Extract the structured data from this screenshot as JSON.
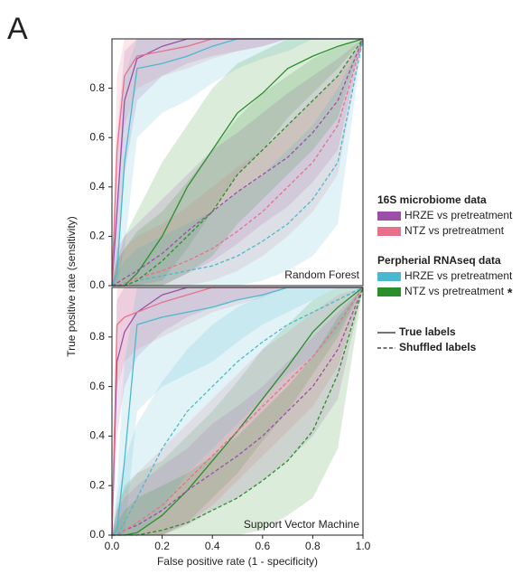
{
  "panel_label": "A",
  "y_label": "True positive rate (sensitivity)",
  "x_label": "False positive rate (1 - specificity)",
  "legend": {
    "groups": [
      {
        "title": "16S microbiome data",
        "entries": [
          {
            "name": "HRZE vs pretreatment",
            "color": "#9b4fa8"
          },
          {
            "name": "NTZ vs pretreatment",
            "color": "#e8708a"
          }
        ]
      },
      {
        "title": "Perpherial RNAseq data",
        "entries": [
          {
            "name": "HRZE vs pretreatment",
            "color": "#4bb8d0"
          },
          {
            "name": "NTZ vs pretreatment",
            "color": "#2a8f2a",
            "note": "*"
          }
        ]
      }
    ],
    "line_styles": [
      {
        "name": "True labels",
        "dash": "solid"
      },
      {
        "name": "Shuffled labels",
        "dash": "dashed"
      }
    ]
  },
  "chart_data": [
    {
      "type": "line",
      "label": "Random Forest",
      "x": [
        0,
        0.02,
        0.05,
        0.1,
        0.2,
        0.3,
        0.4,
        0.5,
        0.6,
        0.7,
        0.8,
        0.9,
        1.0
      ],
      "xlim": [
        0,
        1
      ],
      "ylim": [
        0,
        1
      ],
      "yticks": [
        {
          "value": 0,
          "label": "0.0"
        },
        {
          "value": 0.2,
          "label": "0.2"
        },
        {
          "value": 0.4,
          "label": "0.4"
        },
        {
          "value": 0.6,
          "label": "0.6"
        },
        {
          "value": 0.8,
          "label": "0.8"
        }
      ],
      "series": [
        {
          "color": "#9b4fa8",
          "dash": "solid",
          "values": [
            0,
            0.3,
            0.75,
            0.92,
            0.97,
            1,
            1,
            1,
            1,
            1,
            1,
            1,
            1
          ],
          "lower": [
            0,
            0.05,
            0.45,
            0.75,
            0.85,
            0.9,
            0.93,
            0.95,
            0.97,
            1,
            1,
            1,
            1
          ],
          "upper": [
            0,
            0.6,
            0.95,
            1,
            1,
            1,
            1,
            1,
            1,
            1,
            1,
            1,
            1
          ]
        },
        {
          "color": "#e8708a",
          "dash": "solid",
          "values": [
            0,
            0.55,
            0.85,
            0.93,
            0.95,
            0.97,
            1,
            1,
            1,
            1,
            1,
            1,
            1
          ],
          "lower": [
            0,
            0.3,
            0.65,
            0.8,
            0.85,
            0.88,
            0.92,
            0.95,
            0.97,
            1,
            1,
            1,
            1
          ],
          "upper": [
            0,
            0.85,
            1,
            1,
            1,
            1,
            1,
            1,
            1,
            1,
            1,
            1,
            1
          ]
        },
        {
          "color": "#4bb8d0",
          "dash": "solid",
          "values": [
            0,
            0.05,
            0.5,
            0.88,
            0.9,
            0.93,
            0.97,
            1,
            1,
            1,
            1,
            1,
            1
          ],
          "lower": [
            0,
            0,
            0.15,
            0.6,
            0.7,
            0.75,
            0.82,
            0.88,
            0.92,
            0.95,
            1,
            1,
            1
          ],
          "upper": [
            0,
            0.3,
            0.85,
            1,
            1,
            1,
            1,
            1,
            1,
            1,
            1,
            1,
            1
          ]
        },
        {
          "color": "#2a8f2a",
          "dash": "solid",
          "values": [
            0,
            0,
            0,
            0.05,
            0.2,
            0.4,
            0.55,
            0.7,
            0.78,
            0.88,
            0.93,
            0.97,
            1
          ],
          "lower": [
            0,
            0,
            0,
            0,
            0.02,
            0.15,
            0.3,
            0.45,
            0.55,
            0.68,
            0.78,
            0.88,
            1
          ],
          "upper": [
            0,
            0.1,
            0.2,
            0.3,
            0.5,
            0.65,
            0.8,
            0.9,
            0.95,
            1,
            1,
            1,
            1
          ]
        },
        {
          "color": "#9b4fa8",
          "dash": "dashed",
          "values": [
            0,
            0.01,
            0.03,
            0.06,
            0.13,
            0.22,
            0.3,
            0.38,
            0.45,
            0.52,
            0.62,
            0.75,
            1
          ],
          "lower": [
            0,
            0,
            0,
            0,
            0,
            0.05,
            0.1,
            0.17,
            0.25,
            0.32,
            0.42,
            0.55,
            1
          ],
          "upper": [
            0,
            0.15,
            0.2,
            0.25,
            0.35,
            0.45,
            0.55,
            0.62,
            0.7,
            0.78,
            0.85,
            0.92,
            1
          ]
        },
        {
          "color": "#e8708a",
          "dash": "dashed",
          "values": [
            0,
            0,
            0.01,
            0.03,
            0.06,
            0.1,
            0.15,
            0.22,
            0.3,
            0.4,
            0.5,
            0.65,
            1
          ],
          "lower": [
            0,
            0,
            0,
            0,
            0,
            0,
            0.02,
            0.06,
            0.12,
            0.2,
            0.3,
            0.45,
            1
          ],
          "upper": [
            0,
            0.1,
            0.15,
            0.2,
            0.25,
            0.32,
            0.4,
            0.48,
            0.55,
            0.65,
            0.75,
            0.85,
            1
          ]
        },
        {
          "color": "#4bb8d0",
          "dash": "dashed",
          "values": [
            0,
            0,
            0,
            0.02,
            0.04,
            0.06,
            0.08,
            0.12,
            0.18,
            0.25,
            0.35,
            0.5,
            1
          ],
          "lower": [
            0,
            0,
            0,
            0,
            0,
            0,
            0,
            0,
            0.02,
            0.06,
            0.12,
            0.25,
            1
          ],
          "upper": [
            0,
            0.05,
            0.1,
            0.15,
            0.2,
            0.25,
            0.3,
            0.38,
            0.45,
            0.55,
            0.65,
            0.8,
            1
          ]
        },
        {
          "color": "#2a8f2a",
          "dash": "dashed",
          "values": [
            0,
            0,
            0,
            0.02,
            0.1,
            0.2,
            0.3,
            0.45,
            0.55,
            0.65,
            0.75,
            0.85,
            1
          ],
          "lower": [
            0,
            0,
            0,
            0,
            0,
            0.05,
            0.12,
            0.25,
            0.35,
            0.45,
            0.55,
            0.68,
            1
          ],
          "upper": [
            0,
            0.1,
            0.15,
            0.22,
            0.3,
            0.42,
            0.55,
            0.68,
            0.78,
            0.85,
            0.92,
            0.97,
            1
          ]
        }
      ]
    },
    {
      "type": "line",
      "label": "Support Vector Machine",
      "x": [
        0,
        0.02,
        0.05,
        0.1,
        0.2,
        0.3,
        0.4,
        0.5,
        0.6,
        0.7,
        0.8,
        0.9,
        1.0
      ],
      "xlim": [
        0,
        1
      ],
      "ylim": [
        0,
        1
      ],
      "xticks": [
        {
          "value": 0,
          "label": "0.0"
        },
        {
          "value": 0.2,
          "label": "0.2"
        },
        {
          "value": 0.4,
          "label": "0.4"
        },
        {
          "value": 0.6,
          "label": "0.6"
        },
        {
          "value": 0.8,
          "label": "0.8"
        },
        {
          "value": 1,
          "label": "1.0"
        }
      ],
      "yticks": [
        {
          "value": 0,
          "label": "0.0"
        },
        {
          "value": 0.2,
          "label": "0.2"
        },
        {
          "value": 0.4,
          "label": "0.4"
        },
        {
          "value": 0.6,
          "label": "0.6"
        },
        {
          "value": 0.8,
          "label": "0.8"
        }
      ],
      "series": [
        {
          "color": "#9b4fa8",
          "dash": "solid",
          "values": [
            0,
            0.7,
            0.82,
            0.9,
            0.97,
            1,
            1,
            1,
            1,
            1,
            1,
            1,
            1
          ],
          "lower": [
            0,
            0.4,
            0.6,
            0.72,
            0.82,
            0.88,
            0.92,
            0.95,
            0.97,
            1,
            1,
            1,
            1
          ],
          "upper": [
            0,
            0.95,
            1,
            1,
            1,
            1,
            1,
            1,
            1,
            1,
            1,
            1,
            1
          ]
        },
        {
          "color": "#e8708a",
          "dash": "solid",
          "values": [
            0,
            0.85,
            0.88,
            0.9,
            0.94,
            0.97,
            1,
            1,
            1,
            1,
            1,
            1,
            1
          ],
          "lower": [
            0,
            0.6,
            0.7,
            0.75,
            0.8,
            0.85,
            0.9,
            0.93,
            0.96,
            1,
            1,
            1,
            1
          ],
          "upper": [
            0,
            1,
            1,
            1,
            1,
            1,
            1,
            1,
            1,
            1,
            1,
            1,
            1
          ]
        },
        {
          "color": "#4bb8d0",
          "dash": "solid",
          "values": [
            0,
            0.02,
            0.3,
            0.85,
            0.88,
            0.9,
            0.92,
            0.95,
            0.97,
            1,
            1,
            1,
            1
          ],
          "lower": [
            0,
            0,
            0,
            0.5,
            0.6,
            0.65,
            0.7,
            0.78,
            0.85,
            0.9,
            0.95,
            1,
            1
          ],
          "upper": [
            0,
            0.2,
            0.7,
            1,
            1,
            1,
            1,
            1,
            1,
            1,
            1,
            1,
            1
          ]
        },
        {
          "color": "#2a8f2a",
          "dash": "solid",
          "values": [
            0,
            0,
            0,
            0.01,
            0.08,
            0.18,
            0.3,
            0.42,
            0.55,
            0.68,
            0.82,
            0.92,
            1
          ],
          "lower": [
            0,
            0,
            0,
            0,
            0,
            0.05,
            0.15,
            0.25,
            0.38,
            0.5,
            0.65,
            0.8,
            1
          ],
          "upper": [
            0,
            0.1,
            0.2,
            0.25,
            0.3,
            0.4,
            0.5,
            0.62,
            0.75,
            0.85,
            0.95,
            1,
            1
          ]
        },
        {
          "color": "#9b4fa8",
          "dash": "dashed",
          "values": [
            0,
            0,
            0.02,
            0.04,
            0.1,
            0.18,
            0.25,
            0.32,
            0.4,
            0.5,
            0.6,
            0.75,
            1
          ],
          "lower": [
            0,
            0,
            0,
            0,
            0,
            0.04,
            0.1,
            0.15,
            0.22,
            0.3,
            0.4,
            0.55,
            1
          ],
          "upper": [
            0,
            0.1,
            0.15,
            0.2,
            0.28,
            0.35,
            0.45,
            0.52,
            0.6,
            0.7,
            0.8,
            0.9,
            1
          ]
        },
        {
          "color": "#e8708a",
          "dash": "dashed",
          "values": [
            0,
            0,
            0.02,
            0.05,
            0.12,
            0.22,
            0.32,
            0.42,
            0.52,
            0.62,
            0.72,
            0.85,
            1
          ],
          "lower": [
            0,
            0,
            0,
            0,
            0,
            0.05,
            0.12,
            0.22,
            0.32,
            0.42,
            0.52,
            0.68,
            1
          ],
          "upper": [
            0,
            0.12,
            0.18,
            0.25,
            0.35,
            0.45,
            0.55,
            0.65,
            0.75,
            0.82,
            0.9,
            0.97,
            1
          ]
        },
        {
          "color": "#4bb8d0",
          "dash": "dashed",
          "values": [
            0,
            0,
            0.05,
            0.15,
            0.35,
            0.5,
            0.6,
            0.7,
            0.78,
            0.85,
            0.9,
            0.95,
            1
          ],
          "lower": [
            0,
            0,
            0,
            0,
            0.1,
            0.25,
            0.35,
            0.45,
            0.55,
            0.65,
            0.72,
            0.82,
            1
          ],
          "upper": [
            0,
            0.15,
            0.3,
            0.45,
            0.62,
            0.75,
            0.85,
            0.92,
            0.97,
            1,
            1,
            1,
            1
          ]
        },
        {
          "color": "#2a8f2a",
          "dash": "dashed",
          "values": [
            0,
            0,
            0,
            0,
            0.02,
            0.05,
            0.1,
            0.15,
            0.22,
            0.3,
            0.42,
            0.65,
            1
          ],
          "lower": [
            0,
            0,
            0,
            0,
            0,
            0,
            0,
            0,
            0.02,
            0.08,
            0.15,
            0.35,
            1
          ],
          "upper": [
            0,
            0.05,
            0.1,
            0.15,
            0.2,
            0.25,
            0.32,
            0.4,
            0.5,
            0.6,
            0.72,
            0.88,
            1
          ]
        }
      ]
    }
  ]
}
